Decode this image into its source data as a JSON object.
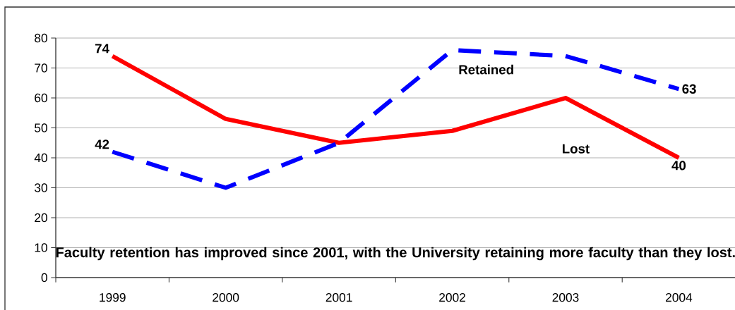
{
  "chart_data": {
    "type": "line",
    "categories": [
      "1999",
      "2000",
      "2001",
      "2002",
      "2003",
      "2004"
    ],
    "series": [
      {
        "name": "Lost",
        "color": "#ff0000",
        "line_style": "solid",
        "values": [
          74,
          53,
          45,
          49,
          60,
          40
        ],
        "value_labels": [
          "74",
          null,
          null,
          null,
          null,
          "40"
        ]
      },
      {
        "name": "Retained",
        "color": "#0000ff",
        "line_style": "dashed",
        "values": [
          42,
          30,
          45,
          76,
          74,
          63
        ],
        "value_labels": [
          "42",
          null,
          null,
          null,
          null,
          "63"
        ]
      }
    ],
    "ylim": [
      0,
      80
    ],
    "yticks": [
      0,
      10,
      20,
      30,
      40,
      50,
      60,
      70,
      80
    ],
    "grid": "y",
    "legend": false,
    "marker": "none",
    "annotations": [
      "Faculty retention has improved since 2001, with the University retaining more faculty than they lost."
    ]
  }
}
